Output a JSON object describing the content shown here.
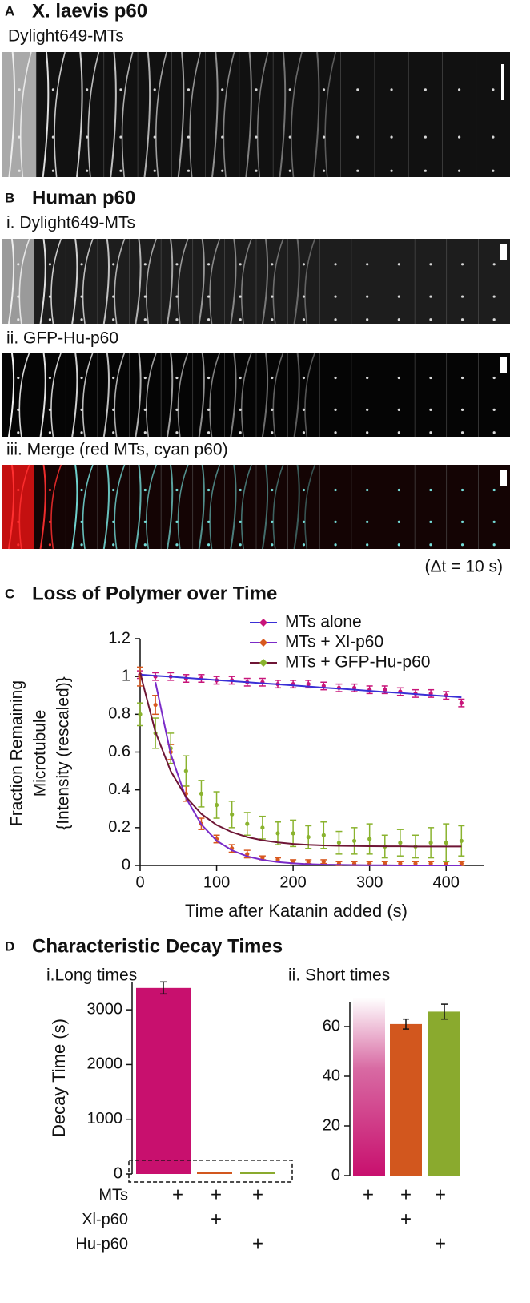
{
  "panel_a": {
    "letter": "A",
    "title": "X. laevis p60",
    "subtitle": "Dylight649-MTs"
  },
  "panel_b": {
    "letter": "B",
    "title": "Human p60",
    "rows": [
      "i. Dylight649-MTs",
      "ii. GFP-Hu-p60",
      "iii. Merge (red MTs, cyan p60)"
    ],
    "note": "(Δt = 10 s)"
  },
  "panel_c": {
    "letter": "C"
  },
  "panel_d": {
    "letter": "D",
    "title": "Characteristic Decay Times",
    "condition_mark": "+",
    "conditions": [
      {
        "label": "MTs",
        "present": [
          true,
          true,
          true
        ]
      },
      {
        "label": "Xl-p60",
        "present": [
          false,
          true,
          false
        ]
      },
      {
        "label": "Hu-p60",
        "present": [
          false,
          false,
          true
        ]
      }
    ]
  },
  "chart_data": [
    {
      "type": "line",
      "title": "Loss of Polymer over Time",
      "y_label": [
        "Fraction Remaining",
        "Microtubule",
        "{Intensity (rescaled)}"
      ],
      "x_label": "Time after Katanin added (s)",
      "x": [
        0,
        20,
        40,
        60,
        80,
        100,
        120,
        140,
        160,
        180,
        200,
        220,
        240,
        260,
        280,
        300,
        320,
        340,
        360,
        380,
        400,
        420
      ],
      "series": [
        {
          "name": "MTs alone",
          "color": "#c8157a",
          "fit_color": "#3a2fd6",
          "values": [
            1.01,
            1.0,
            1.0,
            0.99,
            0.99,
            0.98,
            0.98,
            0.97,
            0.97,
            0.96,
            0.96,
            0.96,
            0.95,
            0.94,
            0.94,
            0.93,
            0.93,
            0.92,
            0.91,
            0.91,
            0.9,
            0.86
          ],
          "errors": [
            0.02,
            0.02,
            0.02,
            0.02,
            0.02,
            0.02,
            0.02,
            0.02,
            0.02,
            0.02,
            0.02,
            0.02,
            0.02,
            0.02,
            0.02,
            0.02,
            0.02,
            0.02,
            0.02,
            0.02,
            0.02,
            0.02
          ],
          "fit": [
            1.01,
            1.004,
            0.999,
            0.993,
            0.987,
            0.981,
            0.976,
            0.97,
            0.964,
            0.959,
            0.953,
            0.947,
            0.941,
            0.936,
            0.93,
            0.924,
            0.918,
            0.913,
            0.907,
            0.901,
            0.896,
            0.89
          ]
        },
        {
          "name": "MTs + Xl-p60",
          "color": "#d8581e",
          "fit_color": "#7a2bc8",
          "values": [
            1.0,
            0.85,
            0.6,
            0.38,
            0.22,
            0.14,
            0.09,
            0.06,
            0.04,
            0.03,
            0.02,
            0.02,
            0.02,
            0.01,
            0.01,
            0.01,
            0.01,
            0.01,
            0.01,
            0.01,
            0.01,
            0.01
          ],
          "errors": [
            0.05,
            0.05,
            0.04,
            0.04,
            0.03,
            0.02,
            0.02,
            0.02,
            0.01,
            0.01,
            0.01,
            0.01,
            0.01,
            0.01,
            0.01,
            0.01,
            0.01,
            0.01,
            0.01,
            0.01,
            0.01,
            0.01
          ],
          "fit": [
            null,
            0.97,
            0.589,
            0.357,
            0.217,
            0.131,
            0.08,
            0.048,
            0.029,
            0.018,
            0.011,
            0.007,
            0.004,
            0.003,
            0.002,
            0.001,
            0.001,
            0.0,
            0.0,
            0.0,
            0.0,
            0.0
          ]
        },
        {
          "name": "MTs + GFP-Hu-p60",
          "color": "#8ab32e",
          "fit_color": "#6e1535",
          "values": [
            0.8,
            0.7,
            0.62,
            0.5,
            0.38,
            0.32,
            0.27,
            0.22,
            0.2,
            0.17,
            0.17,
            0.15,
            0.16,
            0.12,
            0.13,
            0.14,
            0.1,
            0.12,
            0.1,
            0.12,
            0.12,
            0.13
          ],
          "errors": [
            0.06,
            0.08,
            0.08,
            0.08,
            0.07,
            0.07,
            0.07,
            0.06,
            0.06,
            0.06,
            0.07,
            0.06,
            0.07,
            0.06,
            0.07,
            0.08,
            0.06,
            0.07,
            0.06,
            0.08,
            0.1,
            0.08
          ],
          "fit": [
            1.02,
            0.706,
            0.499,
            0.363,
            0.273,
            0.214,
            0.176,
            0.15,
            0.133,
            0.122,
            0.114,
            0.109,
            0.106,
            0.104,
            0.103,
            0.102,
            0.101,
            0.101,
            0.1,
            0.1,
            0.1,
            0.1
          ]
        }
      ],
      "xlim": [
        0,
        450
      ],
      "ylim": [
        0,
        1.2
      ],
      "xticks": [
        0,
        100,
        200,
        300,
        400
      ],
      "yticks": [
        0,
        0.2,
        0.4,
        0.6,
        0.8,
        1,
        1.2
      ],
      "legend": "upper right"
    },
    {
      "type": "bar",
      "title": "i.Long times",
      "y_label": "Decay Time (s)",
      "values": [
        3400,
        40,
        40
      ],
      "errors": [
        110,
        null,
        null
      ],
      "colors": [
        "#c8106e",
        "#d2571e",
        "#8aaa2e"
      ],
      "ylim": [
        0,
        3500
      ],
      "yticks": [
        0,
        1000,
        2000,
        3000
      ],
      "zoom_range": [
        0,
        250
      ]
    },
    {
      "type": "bar",
      "title": "ii. Short times",
      "values": [
        null,
        61,
        66
      ],
      "errors": [
        null,
        2,
        3
      ],
      "colors": [
        "#c8106e",
        "#d2571e",
        "#8aaa2e"
      ],
      "ylim": [
        0,
        70
      ],
      "yticks": [
        0,
        20,
        40,
        60
      ]
    }
  ]
}
